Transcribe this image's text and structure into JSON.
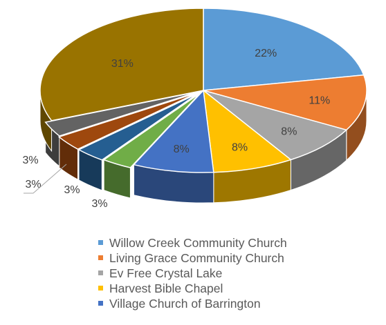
{
  "chart_data": {
    "type": "pie",
    "style": "3d-exploded",
    "title": "",
    "slices": [
      {
        "label": "Willow Creek Community Church",
        "value": 22,
        "display": "22%",
        "color": "#5B9BD5"
      },
      {
        "label": "Living Grace Community Church",
        "value": 11,
        "display": "11%",
        "color": "#ED7D31"
      },
      {
        "label": "Ev Free Crystal Lake",
        "value": 8,
        "display": "8%",
        "color": "#A5A5A5"
      },
      {
        "label": "Harvest Bible Chapel",
        "value": 8,
        "display": "8%",
        "color": "#FFC000"
      },
      {
        "label": "Village Church of Barrington",
        "value": 8,
        "display": "8%",
        "color": "#4472C4"
      },
      {
        "label": "",
        "value": 3,
        "display": "3%",
        "color": "#70AD47"
      },
      {
        "label": "",
        "value": 3,
        "display": "3%",
        "color": "#255E91"
      },
      {
        "label": "",
        "value": 3,
        "display": "3%",
        "color": "#9E480E"
      },
      {
        "label": "",
        "value": 3,
        "display": "3%",
        "color": "#636363"
      },
      {
        "label": "",
        "value": 31,
        "display": "31%",
        "color": "#997300"
      }
    ],
    "legend": {
      "placement": "bottom",
      "entries": [
        "Willow Creek Community Church",
        "Living Grace Community Church",
        "Ev Free Crystal Lake",
        "Harvest Bible Chapel",
        "Village Church of Barrington"
      ]
    }
  }
}
